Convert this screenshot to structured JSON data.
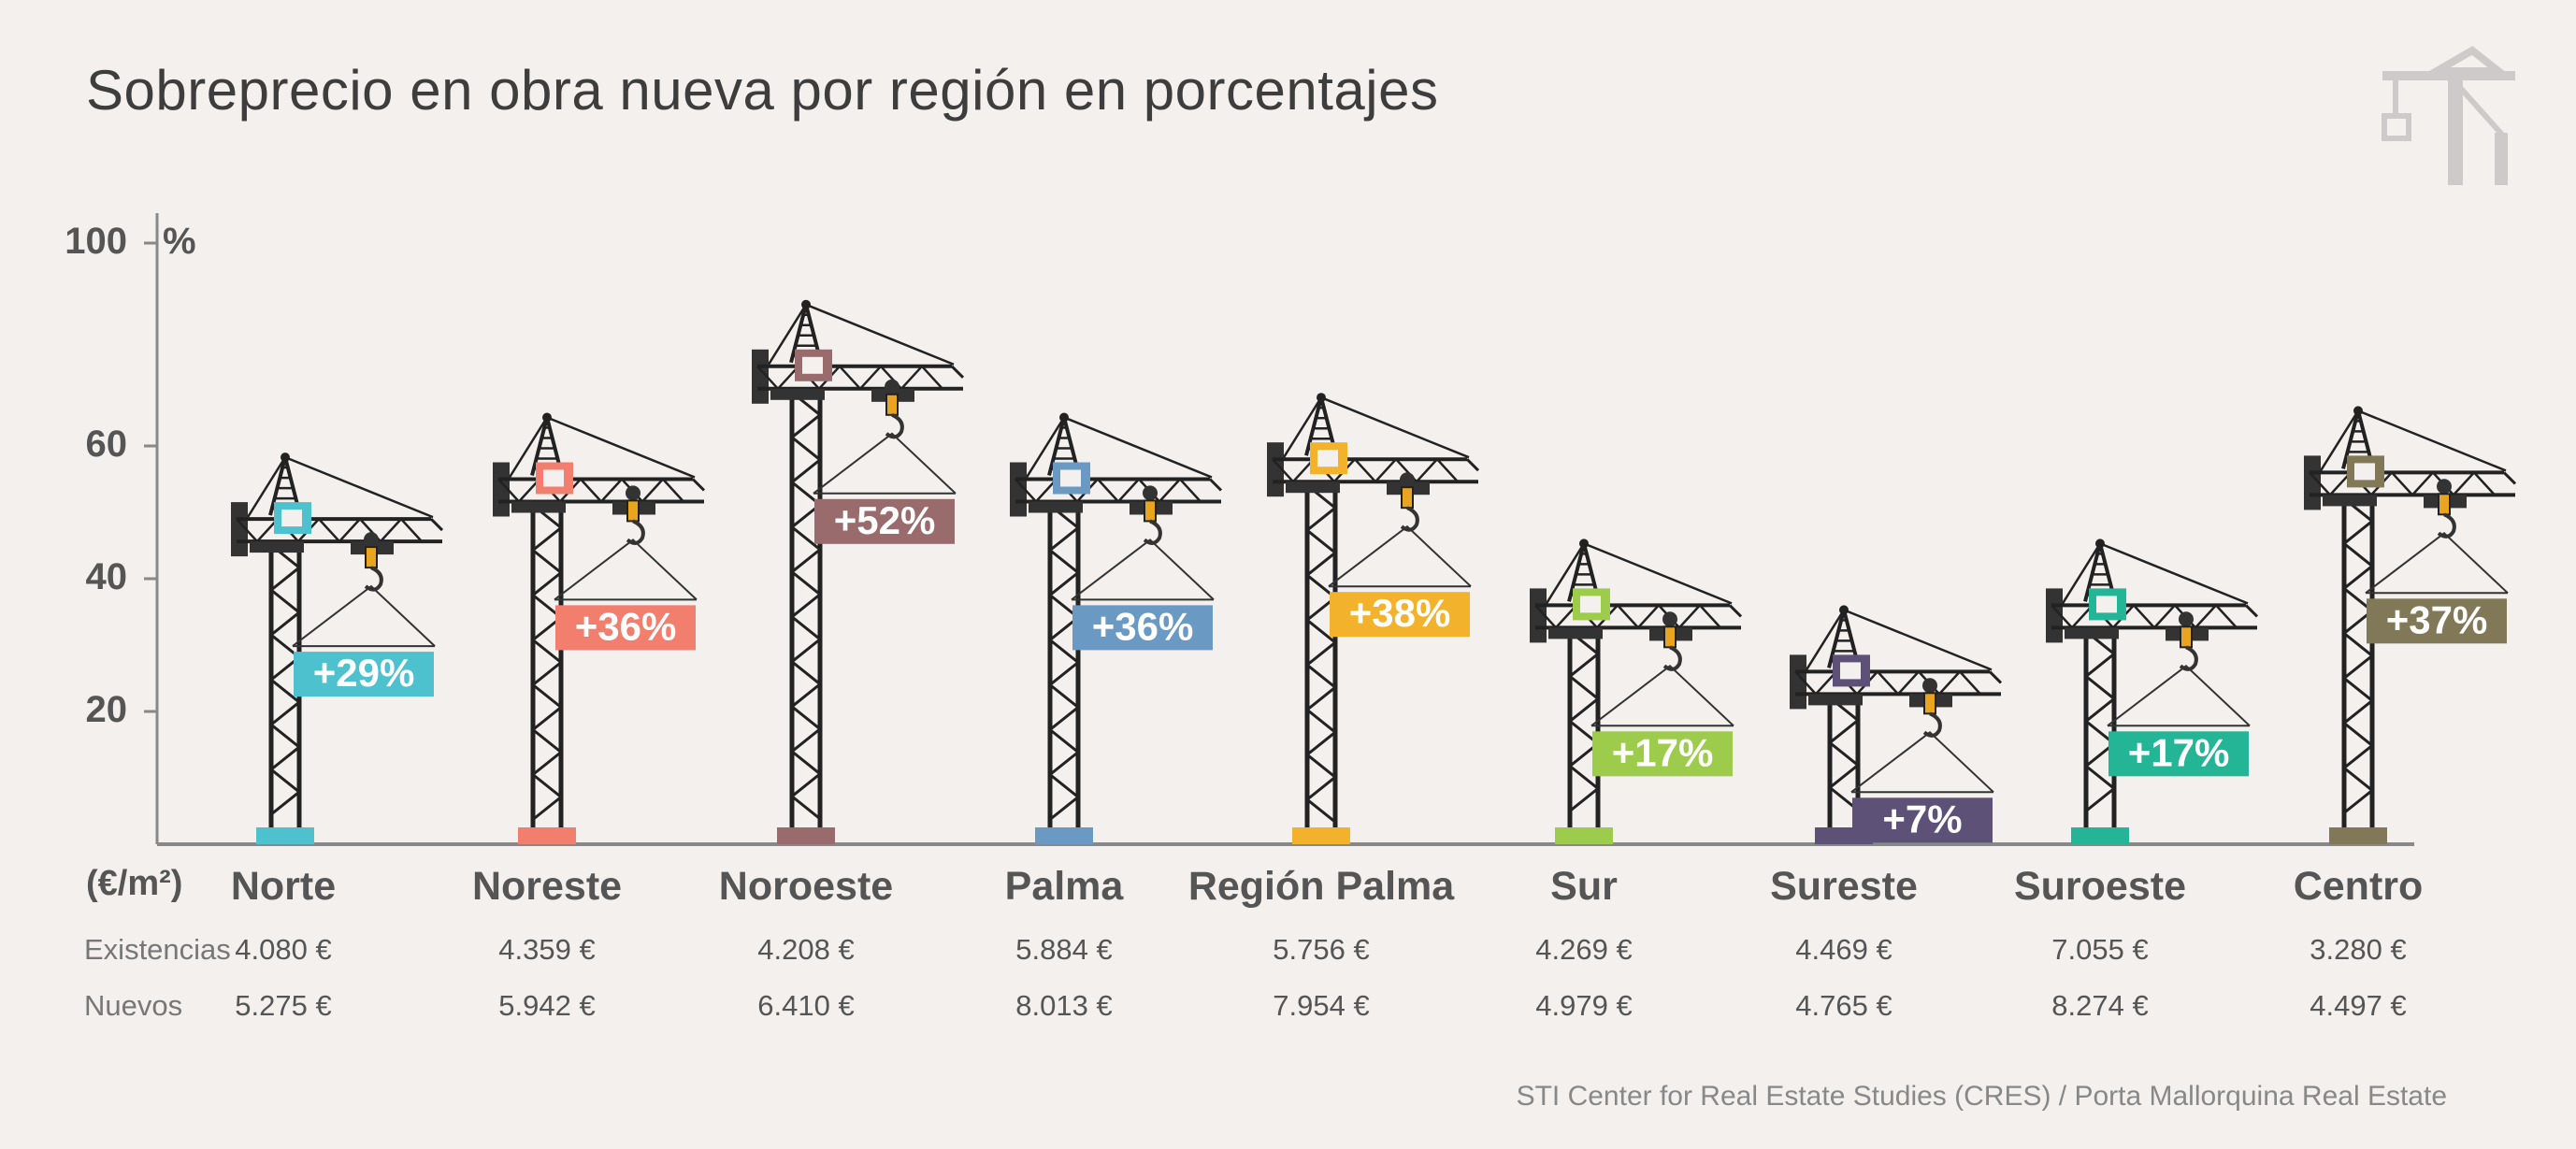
{
  "title": "Sobreprecio en obra nueva por región en porcentajes",
  "source": "STI Center for Real Estate Studies (CRES) / Porta Mallorquina Real Estate",
  "unit_label": "(€/m²)",
  "row_labels": [
    "Existencias",
    "Nuevos"
  ],
  "icon": "construction-crane-icon",
  "chart_data": {
    "type": "bar",
    "ylabel": "%",
    "ylim": [
      0,
      100
    ],
    "yticks": [
      20,
      40,
      60,
      100
    ],
    "categories": [
      "Norte",
      "Noreste",
      "Noroeste",
      "Palma",
      "Región Palma",
      "Sur",
      "Sureste",
      "Suroeste",
      "Centro"
    ],
    "values": [
      29,
      36,
      52,
      36,
      38,
      17,
      7,
      17,
      37
    ],
    "value_labels": [
      "+29%",
      "+36%",
      "+52%",
      "+36%",
      "+38%",
      "+17%",
      "+7%",
      "+17%",
      "+37%"
    ],
    "crane_heights": [
      49,
      55,
      72,
      55,
      58,
      36,
      26,
      36,
      56
    ],
    "existencias": [
      "4.080 €",
      "4.359 €",
      "4.208 €",
      "5.884 €",
      "5.756 €",
      "4.269 €",
      "4.469 €",
      "7.055 €",
      "3.280 €"
    ],
    "nuevos": [
      "5.275 €",
      "5.942 €",
      "6.410 €",
      "8.013 €",
      "7.954 €",
      "4.979 €",
      "4.765 €",
      "8.274 €",
      "4.497 €"
    ],
    "colors": [
      "#4ec1cf",
      "#f27f6d",
      "#9a6b6d",
      "#6a99c4",
      "#f2b22c",
      "#9dcb4b",
      "#5e5178",
      "#23b596",
      "#807857"
    ]
  }
}
